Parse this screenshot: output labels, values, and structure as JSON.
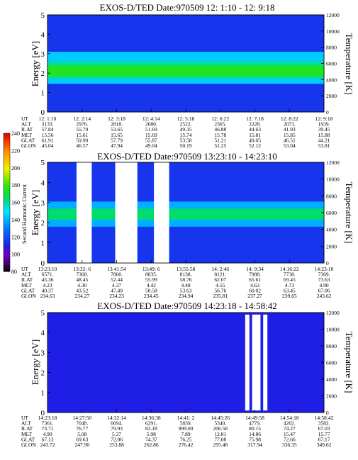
{
  "panels": [
    {
      "title": "EXOS-D/TED   Date:970509  12: 1:10 - 12: 9:18",
      "ylabel_left": "Energy [eV]",
      "ylabel_right": "Temperature [K]",
      "y_ticks": [
        "0",
        "1",
        "2",
        "3",
        "4",
        "5"
      ],
      "yr_ticks": [
        "0",
        "2000",
        "4000",
        "6000",
        "8000",
        "10000",
        "12000"
      ],
      "table": {
        "row_labels": [
          "UT",
          "ALT",
          "ILAT",
          "MLT",
          "GLAT",
          "GLON"
        ],
        "columns": [
          [
            "12: 1:10",
            "3133.",
            "57.84",
            "15.56",
            "61.91",
            "45.04"
          ],
          [
            "12: 2:14",
            "2976.",
            "55.79",
            "15.61",
            "59.90",
            "46.57"
          ],
          [
            "12: 3:18",
            "2818.",
            "53.65",
            "15.65",
            "57.79",
            "47.94"
          ],
          [
            "12: 4:14",
            "2680.",
            "51.69",
            "15.69",
            "55.87",
            "49.04"
          ],
          [
            "12: 5:18",
            "2522.",
            "49.35",
            "15.74",
            "53.58",
            "50.19"
          ],
          [
            "12: 6:22",
            "2365.",
            "46.88",
            "15.78",
            "51.21",
            "51.25"
          ],
          [
            "12: 7:18",
            "2228.",
            "44.63",
            "15.81",
            "49.05",
            "52.12"
          ],
          [
            "12: 8:22",
            "2073.",
            "41.93",
            "15.85",
            "46.51",
            "53.04"
          ],
          [
            "12: 9:18",
            "1939.",
            "39.45",
            "15.88",
            "44.21",
            "53.81"
          ]
        ]
      }
    },
    {
      "title": "EXOS-D/TED   Date:970509  13:23:10 - 14:23:10",
      "ylabel_left": "Energy [eV]",
      "ylabel_right": "Temperature [K]",
      "y_ticks": [
        "0",
        "1",
        "2",
        "3",
        "4",
        "5"
      ],
      "yr_ticks": [
        "0",
        "2000",
        "4000",
        "6000",
        "8000",
        "10000",
        "12000"
      ],
      "table": {
        "row_labels": [
          "UT",
          "ALT",
          "ILAT",
          "MLT",
          "GLAT",
          "GLON"
        ],
        "columns": [
          [
            "13:23:10",
            "6571.",
            "45.36",
            "4.23",
            "40.37",
            "234.63"
          ],
          [
            "13:32: 6",
            "7368.",
            "48.45",
            "4.30",
            "43.52",
            "234.27"
          ],
          [
            "13:41:54",
            "7800.",
            "52.44",
            "4.37",
            "47.49",
            "234.23"
          ],
          [
            "13:49: 6",
            "8035.",
            "55.99",
            "4.42",
            "50.58",
            "234.45"
          ],
          [
            "13:55:58",
            "8138.",
            "58.76",
            "4.48",
            "53.63",
            "234.94"
          ],
          [
            "14: 2:46",
            "8121.",
            "62.07",
            "4.55",
            "56.76",
            "235.81"
          ],
          [
            "14: 9:34",
            "7988.",
            "65.61",
            "4.63",
            "60.02",
            "237.27"
          ],
          [
            "14:16:22",
            "7738.",
            "69.45",
            "4.73",
            "63.45",
            "239.65"
          ],
          [
            "14:23:10",
            "7369.",
            "73.63",
            "4.90",
            "67.06",
            "243.62"
          ]
        ]
      }
    },
    {
      "title": "EXOS-D/TED   Date:970509  14:23:18 - 14:58:42",
      "ylabel_left": "Energy [eV]",
      "ylabel_right": "Temperature [K]",
      "y_ticks": [
        "0",
        "1",
        "2",
        "3",
        "4",
        "5"
      ],
      "yr_ticks": [
        "0",
        "2000",
        "4000",
        "6000",
        "8000",
        "10000",
        "12000"
      ],
      "table": {
        "row_labels": [
          "UT",
          "ALT",
          "ILAT",
          "MLT",
          "GLAT",
          "GLON"
        ],
        "columns": [
          [
            "14:23:18",
            "7361.",
            "73.71",
            "4.90",
            "67.13",
            "243.72"
          ],
          [
            "14:27:50",
            "7048.",
            "76.77",
            "5.08",
            "69.63",
            "247.90"
          ],
          [
            "14:32:14",
            "6694.",
            "79.93",
            "5.37",
            "72.06",
            "253.88"
          ],
          [
            "14:36:38",
            "6291.",
            "83.18",
            "5.98",
            "74.37",
            "262.86"
          ],
          [
            "14:41: 2",
            "5839.",
            "999.00",
            "7.89",
            "76.25",
            "276.42"
          ],
          [
            "14:45:26",
            "5340.",
            "206.58",
            "12.81",
            "77.08",
            "295.48"
          ],
          [
            "14:49:58",
            "4779.",
            "80.15",
            "14.86",
            "75.98",
            "317.94"
          ],
          [
            "14:54:18",
            "4202.",
            "74.27",
            "15.47",
            "72.66",
            "336.35"
          ],
          [
            "14:58:42",
            "3582.",
            "67.03",
            "15.77",
            "67.17",
            "349.62"
          ]
        ]
      }
    }
  ],
  "colorbar": {
    "label": "Second Harmonic Current",
    "ticks": [
      "80",
      "100",
      "120",
      "140",
      "160",
      "180",
      "200",
      "220",
      "240"
    ]
  },
  "chart_data": [
    {
      "type": "heatmap",
      "title": "EXOS-D/TED   Date:970509  12: 1:10 - 12: 9:18",
      "xlabel": "UT",
      "ylabel": "Energy [eV]",
      "ylabel_right": "Temperature [K]",
      "x_ticks": [
        "12: 1:10",
        "12: 2:14",
        "12: 3:18",
        "12: 4:14",
        "12: 5:18",
        "12: 6:22",
        "12: 7:18",
        "12: 8:22",
        "12: 9:18"
      ],
      "ylim": [
        0,
        5
      ],
      "ylim_right": [
        0,
        12000
      ],
      "background_level": 115,
      "bands": [
        {
          "level": 145,
          "y_low": 1.45,
          "y_high": 3.1
        },
        {
          "level": 160,
          "y_low": 1.7,
          "y_high": 2.6
        },
        {
          "level": 175,
          "y_low": 1.85,
          "y_high": 2.4
        }
      ]
    },
    {
      "type": "heatmap",
      "title": "EXOS-D/TED   Date:970509  13:23:10 - 14:23:10",
      "xlabel": "UT",
      "ylabel": "Energy [eV]",
      "ylabel_right": "Temperature [K]",
      "x_ticks": [
        "13:23:10",
        "13:32: 6",
        "13:41:54",
        "13:49: 6",
        "13:55:58",
        "14: 2:46",
        "14: 9:34",
        "14:16:22",
        "14:23:10"
      ],
      "ylim": [
        0,
        5
      ],
      "ylim_right": [
        0,
        12000
      ],
      "background_level": 115,
      "bands": [
        {
          "level": 140,
          "y_low": 1.8,
          "y_high": 3.05
        },
        {
          "level": 165,
          "y_low": 2.15,
          "y_high": 2.7
        }
      ],
      "data_gaps": 3
    },
    {
      "type": "heatmap",
      "title": "EXOS-D/TED   Date:970509  14:23:18 - 14:58:42",
      "xlabel": "UT",
      "ylabel": "Energy [eV]",
      "ylabel_right": "Temperature [K]",
      "x_ticks": [
        "14:23:18",
        "14:27:50",
        "14:32:14",
        "14:36:38",
        "14:41: 2",
        "14:45:26",
        "14:49:58",
        "14:54:18",
        "14:58:42"
      ],
      "ylim": [
        0,
        5
      ],
      "ylim_right": [
        0,
        12000
      ],
      "background_level": 110,
      "bands": []
    }
  ]
}
